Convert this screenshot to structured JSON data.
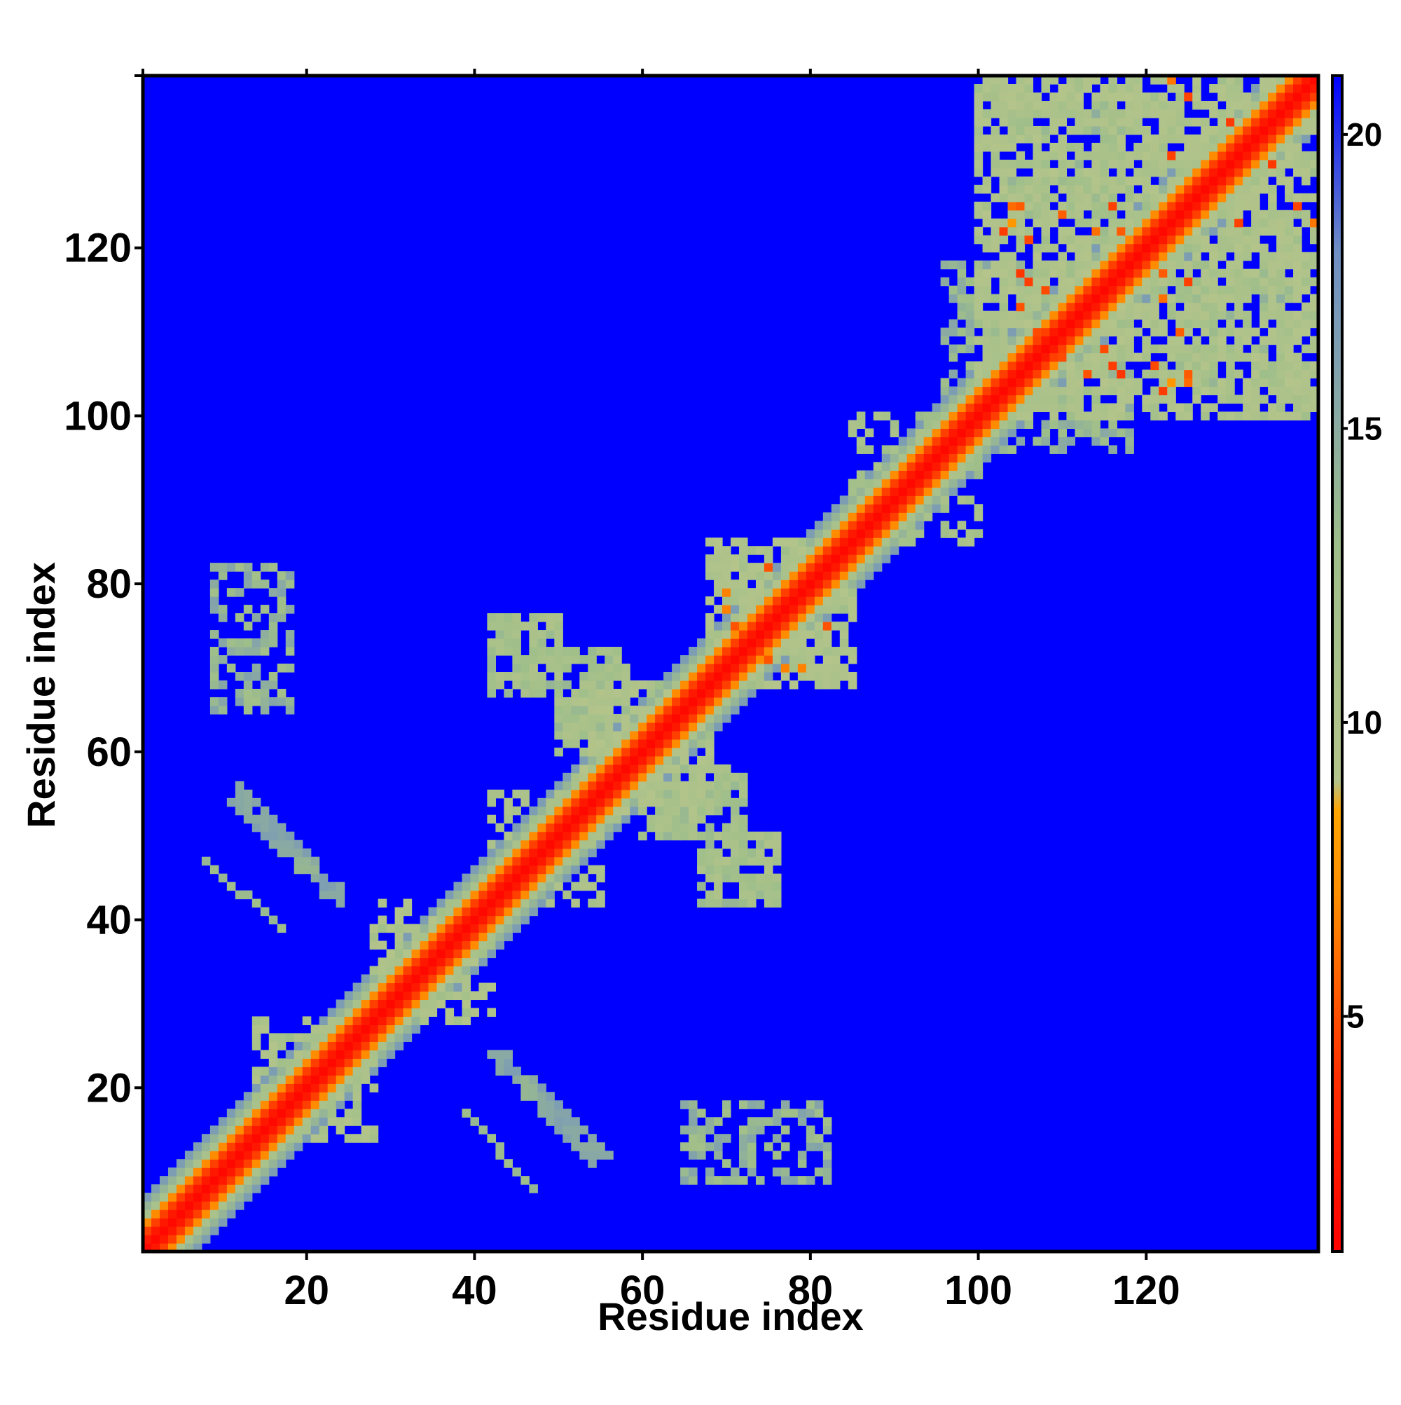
{
  "chart_data": {
    "type": "heatmap",
    "title": "",
    "xlabel": "Residue index",
    "ylabel": "Residue index",
    "n_residues": 140,
    "xlim": [
      0.5,
      140.5
    ],
    "ylim": [
      0.5,
      140.5
    ],
    "x_ticks": [
      20,
      40,
      60,
      80,
      100,
      120
    ],
    "y_ticks": [
      20,
      40,
      60,
      80,
      100,
      120
    ],
    "x_tick_labels": [
      "20",
      "40",
      "60",
      "80",
      "100",
      "120"
    ],
    "y_tick_labels": [
      "20",
      "40",
      "60",
      "80",
      "100",
      "120"
    ],
    "symmetric": true,
    "colorbar": {
      "range": [
        1,
        21
      ],
      "ticks": [
        5,
        10,
        15,
        20
      ],
      "tick_labels": [
        "5",
        "10",
        "15",
        "20"
      ],
      "stops": [
        {
          "value": 1,
          "color": "#ff0000"
        },
        {
          "value": 4,
          "color": "#ff3000"
        },
        {
          "value": 7,
          "color": "#ff8c00"
        },
        {
          "value": 8.5,
          "color": "#ffa500"
        },
        {
          "value": 9,
          "color": "#b4c48a"
        },
        {
          "value": 13,
          "color": "#9ebe8a"
        },
        {
          "value": 18,
          "color": "#6f8fc4"
        },
        {
          "value": 21,
          "color": "#0000ff"
        }
      ]
    },
    "background_value": 21,
    "diagonal_band": [
      {
        "offset": 0,
        "value": 1.5
      },
      {
        "offset": 1,
        "value": 2.5
      },
      {
        "offset": 2,
        "value": 4.5
      },
      {
        "offset": 3,
        "value": 7
      },
      {
        "offset": 4,
        "value": 11
      },
      {
        "offset": 5,
        "value": 14
      },
      {
        "offset": 6,
        "value": 16.5
      }
    ],
    "contact_regions": [
      {
        "x": [
          14,
          28
        ],
        "y": [
          14,
          28
        ],
        "value": 11,
        "density": 0.55
      },
      {
        "x": [
          28,
          42
        ],
        "y": [
          28,
          42
        ],
        "value": 11,
        "density": 0.5
      },
      {
        "x": [
          42,
          55
        ],
        "y": [
          42,
          55
        ],
        "value": 12,
        "density": 0.45
      },
      {
        "x": [
          52,
          68
        ],
        "y": [
          52,
          68
        ],
        "value": 11,
        "density": 0.6
      },
      {
        "x": [
          68,
          85
        ],
        "y": [
          68,
          85
        ],
        "value": 11,
        "density": 0.65
      },
      {
        "x": [
          68,
          82
        ],
        "y": [
          68,
          82
        ],
        "value": 6,
        "density": 0.08
      },
      {
        "x": [
          85,
          100
        ],
        "y": [
          85,
          100
        ],
        "value": 12,
        "density": 0.4
      },
      {
        "x": [
          100,
          140
        ],
        "y": [
          100,
          140
        ],
        "value": 11,
        "density": 0.7
      },
      {
        "x": [
          103,
          125
        ],
        "y": [
          103,
          125
        ],
        "value": 6,
        "density": 0.1
      },
      {
        "x": [
          122,
          140
        ],
        "y": [
          122,
          140
        ],
        "value": 6,
        "density": 0.05
      },
      {
        "x": [
          42,
          50
        ],
        "y": [
          67,
          76
        ],
        "value": 12,
        "density": 0.55
      },
      {
        "x": [
          50,
          58
        ],
        "y": [
          60,
          72
        ],
        "value": 12,
        "density": 0.5
      },
      {
        "x": [
          62,
          72
        ],
        "y": [
          50,
          58
        ],
        "value": 12,
        "density": 0.5
      },
      {
        "x": [
          68,
          76
        ],
        "y": [
          42,
          50
        ],
        "value": 12,
        "density": 0.55
      },
      {
        "x": [
          9,
          18
        ],
        "y": [
          65,
          82
        ],
        "value": 14,
        "density": 0.35
      },
      {
        "x": [
          65,
          82
        ],
        "y": [
          9,
          18
        ],
        "value": 14,
        "density": 0.35
      },
      {
        "x": [
          96,
          108
        ],
        "y": [
          103,
          118
        ],
        "value": 14,
        "density": 0.3
      },
      {
        "x": [
          103,
          118
        ],
        "y": [
          96,
          108
        ],
        "value": 14,
        "density": 0.3
      },
      {
        "x": [
          122,
          137
        ],
        "y": [
          104,
          118
        ],
        "value": 13,
        "density": 0.3
      },
      {
        "x": [
          104,
          118
        ],
        "y": [
          122,
          137
        ],
        "value": 13,
        "density": 0.3
      }
    ],
    "antiparallel_strands": [
      {
        "from": [
          12,
          55
        ],
        "to": [
          24,
          43
        ],
        "value": 15,
        "width": 2
      },
      {
        "from": [
          8,
          47
        ],
        "to": [
          17,
          39
        ],
        "value": 14,
        "width": 1
      },
      {
        "from": [
          43,
          23
        ],
        "to": [
          54,
          12
        ],
        "value": 15,
        "width": 2
      },
      {
        "from": [
          39,
          17
        ],
        "to": [
          47,
          8
        ],
        "value": 14,
        "width": 1
      }
    ]
  }
}
